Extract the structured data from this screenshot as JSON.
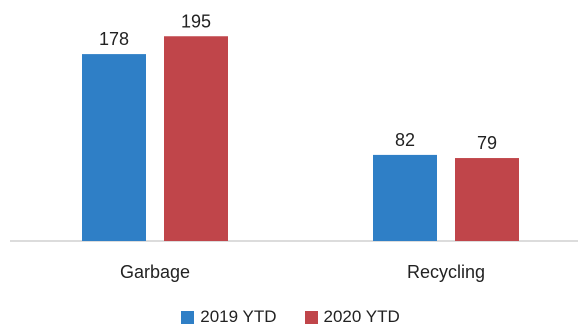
{
  "chart_data": {
    "type": "bar",
    "categories": [
      "Garbage",
      "Recycling"
    ],
    "series": [
      {
        "name": "2019 YTD",
        "values": [
          178,
          82
        ],
        "color": "#2f7fc6"
      },
      {
        "name": "2020 YTD",
        "values": [
          195,
          79
        ],
        "color": "#c0454a"
      }
    ],
    "ylim": [
      0,
      210
    ],
    "grid": false,
    "legend_position": "bottom-center",
    "data_labels": true
  }
}
